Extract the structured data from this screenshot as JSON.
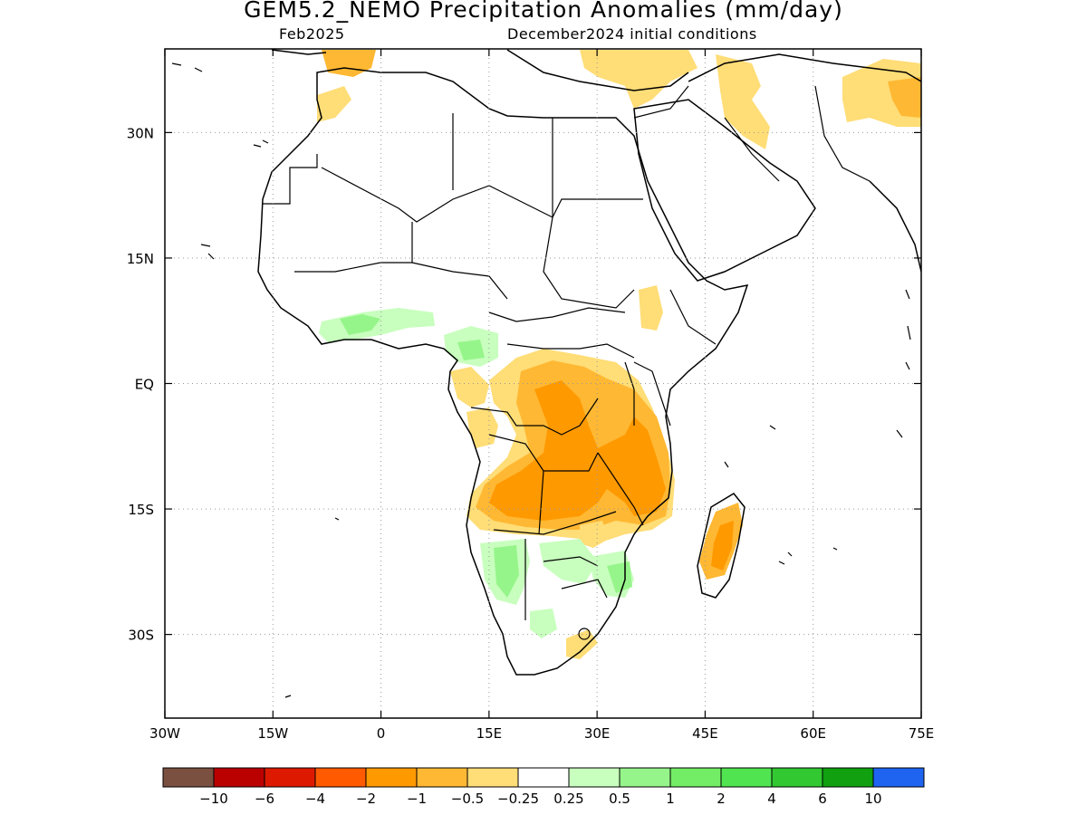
{
  "title": "GEM5.2_NEMO Precipitation Anomalies (mm/day)",
  "period": "Feb2025",
  "init": "December2024 initial conditions",
  "lon_labels": [
    "30W",
    "15W",
    "0",
    "15E",
    "30E",
    "45E",
    "60E",
    "75E"
  ],
  "lat_labels": [
    "30N",
    "15N",
    "EQ",
    "15S",
    "30S"
  ],
  "legend": {
    "colors": [
      "#7a5040",
      "#bb0000",
      "#dd1a00",
      "#ff5a00",
      "#ff9900",
      "#ffb833",
      "#ffdd77",
      "#ffffff",
      "#c8ffbe",
      "#96f58a",
      "#74ed66",
      "#50e550",
      "#32c832",
      "#10a010",
      "#1e64f0"
    ],
    "labels": [
      "-10",
      "-6",
      "-4",
      "-2",
      "-1",
      "-0.5",
      "-0.25",
      "0.25",
      "0.5",
      "1",
      "2",
      "4",
      "6",
      "10"
    ]
  },
  "map": {
    "lon_range": [
      -30,
      75
    ],
    "lat_range": [
      -40,
      40
    ],
    "grid": "dotted"
  }
}
